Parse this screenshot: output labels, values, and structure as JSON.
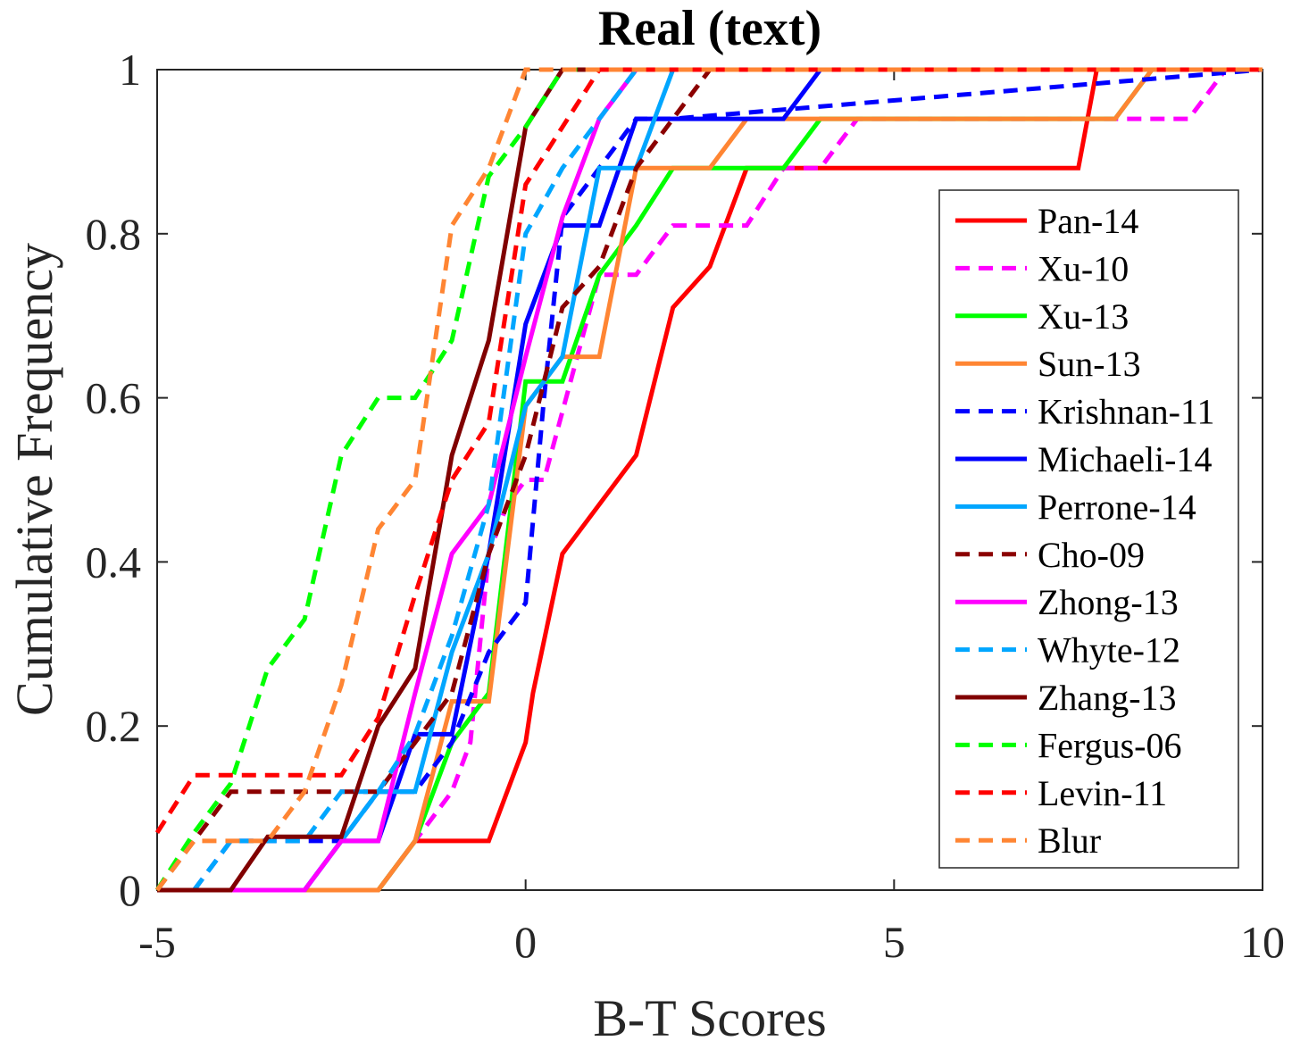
{
  "chart_data": {
    "type": "line",
    "title": "Real (text)",
    "xlabel": "B-T Scores",
    "ylabel": "Cumulative Frequency",
    "xlim": [
      -5,
      10
    ],
    "ylim": [
      0,
      1
    ],
    "xticks": [
      -5,
      0,
      5,
      10
    ],
    "xtick_labels": [
      "-5",
      "0",
      "5",
      "10"
    ],
    "yticks": [
      0,
      0.2,
      0.4,
      0.6,
      0.8,
      1
    ],
    "ytick_labels": [
      "0",
      "0.2",
      "0.4",
      "0.6",
      "0.8",
      "1"
    ],
    "grid": false,
    "legend_position": "right",
    "series": [
      {
        "name": "Pan-14",
        "color": "#ff0000",
        "dash": false,
        "x": [
          -5,
          -2,
          -1.5,
          -0.5,
          -0.25,
          0,
          0.1,
          0.5,
          1.5,
          2,
          2.5,
          3,
          7.5,
          7.75,
          10
        ],
        "y": [
          0,
          0,
          0.06,
          0.06,
          0.12,
          0.18,
          0.24,
          0.41,
          0.53,
          0.71,
          0.76,
          0.88,
          0.88,
          1,
          1
        ]
      },
      {
        "name": "Xu-10",
        "color": "#ff00ff",
        "dash": true,
        "x": [
          -5,
          -2,
          -1.5,
          -1,
          -0.75,
          -0.5,
          -0.25,
          0,
          0.25,
          1,
          1.5,
          2,
          2.5,
          3,
          3.5,
          4,
          4.5,
          5,
          8,
          9,
          9.5,
          10
        ],
        "y": [
          0,
          0,
          0.06,
          0.12,
          0.18,
          0.41,
          0.47,
          0.5,
          0.5,
          0.75,
          0.75,
          0.81,
          0.81,
          0.81,
          0.88,
          0.88,
          0.94,
          0.94,
          0.94,
          0.94,
          1,
          1
        ]
      },
      {
        "name": "Xu-13",
        "color": "#00ff00",
        "dash": false,
        "x": [
          -5,
          -2,
          -1.5,
          -1,
          -0.5,
          0,
          0.5,
          1,
          1.5,
          2,
          3.5,
          4,
          8,
          8.5,
          10
        ],
        "y": [
          0,
          0,
          0.06,
          0.18,
          0.24,
          0.62,
          0.62,
          0.75,
          0.81,
          0.88,
          0.88,
          0.94,
          0.94,
          1,
          1
        ]
      },
      {
        "name": "Sun-13",
        "color": "#ff8533",
        "dash": false,
        "x": [
          -5,
          -2,
          -1.5,
          -1,
          -0.5,
          -0.25,
          0,
          0.5,
          1,
          1.5,
          2.5,
          3,
          8,
          8.5,
          10
        ],
        "y": [
          0,
          0,
          0.06,
          0.23,
          0.23,
          0.41,
          0.59,
          0.65,
          0.65,
          0.88,
          0.88,
          0.94,
          0.94,
          1,
          1
        ]
      },
      {
        "name": "Krishnan-11",
        "color": "#0000ff",
        "dash": true,
        "x": [
          -4.5,
          -4,
          -3,
          -2.5,
          -2,
          -1.5,
          -1,
          -0.5,
          0,
          0.25,
          0.5,
          1,
          1.5,
          2,
          10
        ],
        "y": [
          0,
          0.06,
          0.06,
          0.06,
          0.12,
          0.12,
          0.18,
          0.29,
          0.35,
          0.6,
          0.82,
          0.88,
          0.94,
          0.94,
          1
        ]
      },
      {
        "name": "Michaeli-14",
        "color": "#0000ff",
        "dash": false,
        "x": [
          -5,
          -3,
          -2.5,
          -2,
          -1.5,
          -1,
          -0.5,
          0,
          0.5,
          1,
          1.5,
          2,
          3.5,
          4,
          10
        ],
        "y": [
          0,
          0,
          0.06,
          0.06,
          0.19,
          0.19,
          0.41,
          0.69,
          0.81,
          0.81,
          0.94,
          0.94,
          0.94,
          1,
          1
        ]
      },
      {
        "name": "Perrone-14",
        "color": "#00a6ff",
        "dash": false,
        "x": [
          -5,
          -3,
          -2.5,
          -2,
          -1.5,
          -1,
          -0.5,
          0,
          0.5,
          1,
          1.5,
          2,
          10
        ],
        "y": [
          0,
          0,
          0.06,
          0.12,
          0.12,
          0.29,
          0.41,
          0.59,
          0.65,
          0.88,
          0.88,
          1,
          1
        ]
      },
      {
        "name": "Cho-09",
        "color": "#8b0000",
        "dash": true,
        "x": [
          -5,
          -4,
          -2,
          -1.5,
          -1,
          -0.5,
          0,
          0.5,
          1,
          1.5,
          2,
          2.5,
          10
        ],
        "y": [
          0,
          0.12,
          0.12,
          0.18,
          0.24,
          0.41,
          0.53,
          0.71,
          0.76,
          0.88,
          0.94,
          1,
          1
        ]
      },
      {
        "name": "Zhong-13",
        "color": "#ff00ff",
        "dash": false,
        "x": [
          -5,
          -3,
          -2.5,
          -2,
          -1.5,
          -1,
          -0.5,
          0,
          0.5,
          1,
          1.5,
          10
        ],
        "y": [
          0,
          0,
          0.06,
          0.06,
          0.24,
          0.41,
          0.47,
          0.65,
          0.82,
          0.94,
          1,
          1
        ]
      },
      {
        "name": "Whyte-12",
        "color": "#00a6ff",
        "dash": true,
        "x": [
          -4.5,
          -4,
          -3,
          -2.5,
          -2,
          -1.5,
          -1,
          -0.5,
          0,
          0.5,
          1,
          1.5,
          10
        ],
        "y": [
          0,
          0.06,
          0.06,
          0.12,
          0.12,
          0.19,
          0.31,
          0.47,
          0.8,
          0.88,
          0.94,
          1,
          1
        ]
      },
      {
        "name": "Zhang-13",
        "color": "#800000",
        "dash": false,
        "x": [
          -5,
          -4,
          -3.5,
          -2.5,
          -2,
          -1.5,
          -1,
          -0.5,
          0,
          0.5,
          10
        ],
        "y": [
          0,
          0,
          0.065,
          0.065,
          0.2,
          0.27,
          0.53,
          0.67,
          0.93,
          1,
          1
        ]
      },
      {
        "name": "Fergus-06",
        "color": "#00ff00",
        "dash": true,
        "x": [
          -5,
          -4.5,
          -4,
          -3.5,
          -3,
          -2.5,
          -2,
          -1.5,
          -1,
          -0.5,
          0,
          0.5,
          10
        ],
        "y": [
          0,
          0.07,
          0.13,
          0.27,
          0.33,
          0.53,
          0.6,
          0.6,
          0.67,
          0.87,
          0.93,
          1,
          1
        ]
      },
      {
        "name": "Levin-11",
        "color": "#ff0000",
        "dash": true,
        "x": [
          -5,
          -4.5,
          -2.5,
          -2,
          -1.5,
          -1,
          -0.5,
          0,
          0.5,
          1,
          10
        ],
        "y": [
          0.07,
          0.14,
          0.14,
          0.21,
          0.36,
          0.5,
          0.57,
          0.86,
          0.93,
          1,
          1
        ]
      },
      {
        "name": "Blur",
        "color": "#ff8533",
        "dash": true,
        "x": [
          -5,
          -4.5,
          -3.5,
          -3,
          -2.5,
          -2,
          -1.5,
          -1,
          -0.5,
          0,
          10
        ],
        "y": [
          0,
          0.06,
          0.06,
          0.12,
          0.25,
          0.44,
          0.5,
          0.81,
          0.88,
          1,
          1
        ]
      }
    ]
  }
}
